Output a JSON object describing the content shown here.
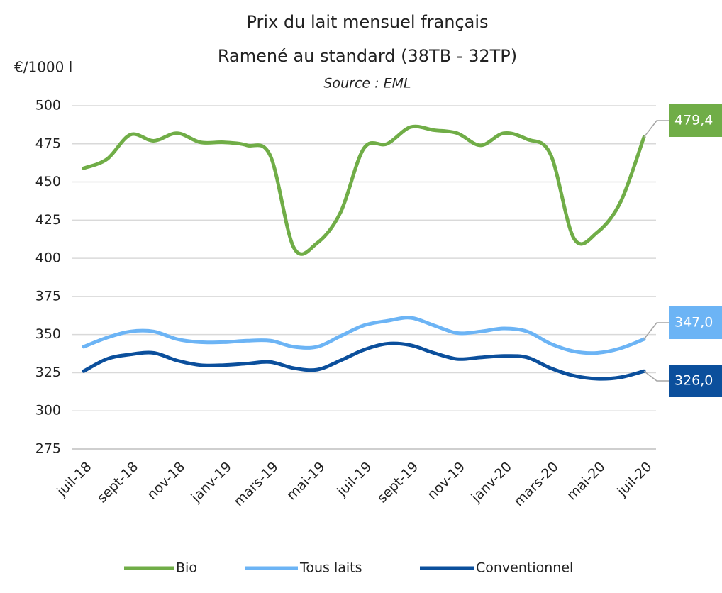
{
  "chart_data": {
    "type": "line",
    "title": "Prix du lait mensuel français",
    "subtitle": "Ramené au standard (38TB - 32TP)",
    "source": "Source : EML",
    "y_label": "€/1000 l",
    "categories": [
      "juil-18",
      null,
      "sept-18",
      null,
      "nov-18",
      null,
      "janv-19",
      null,
      "mars-19",
      null,
      "mai-19",
      null,
      "juil-19",
      null,
      "sept-19",
      null,
      "nov-19",
      null,
      "janv-20",
      null,
      "mars-20",
      null,
      "mai-20",
      null,
      "juil-20"
    ],
    "series": [
      {
        "name": "Bio",
        "color": "#70ad47",
        "values": [
          459,
          465,
          481,
          477,
          482,
          476,
          476,
          474,
          467,
          407,
          410,
          430,
          472,
          475,
          486,
          484,
          482,
          474,
          482,
          478,
          468,
          413,
          417,
          437,
          479.4
        ],
        "value_labels": [
          null,
          null,
          null,
          null,
          null,
          null,
          null,
          null,
          null,
          null,
          null,
          null,
          null,
          null,
          null,
          null,
          null,
          null,
          null,
          null,
          null,
          null,
          null,
          null,
          "479,4"
        ]
      },
      {
        "name": "Tous laits",
        "color": "#6cb4f5",
        "values": [
          342,
          348,
          352,
          352,
          347,
          345,
          345,
          346,
          346,
          342,
          342,
          349,
          356,
          359,
          361,
          356,
          351,
          352,
          354,
          352,
          344,
          339,
          338,
          341,
          347
        ],
        "value_labels": [
          null,
          null,
          null,
          null,
          null,
          null,
          null,
          null,
          null,
          null,
          null,
          null,
          null,
          null,
          null,
          null,
          null,
          null,
          null,
          null,
          null,
          null,
          null,
          null,
          "347,0"
        ]
      },
      {
        "name": "Conventionnel",
        "color": "#0b4f9c",
        "values": [
          326,
          334,
          337,
          338,
          333,
          330,
          330,
          331,
          332,
          328,
          327,
          333,
          340,
          344,
          343,
          338,
          334,
          335,
          336,
          335,
          328,
          323,
          321,
          322,
          326
        ],
        "value_labels": [
          null,
          null,
          null,
          null,
          null,
          null,
          null,
          null,
          null,
          null,
          null,
          null,
          null,
          null,
          null,
          null,
          null,
          null,
          null,
          null,
          null,
          null,
          null,
          null,
          "326,0"
        ]
      }
    ],
    "ylim": [
      275,
      500
    ],
    "yticks": [
      275,
      300,
      325,
      350,
      375,
      400,
      425,
      450,
      475,
      500
    ],
    "grid": true,
    "legend": "bottom"
  }
}
